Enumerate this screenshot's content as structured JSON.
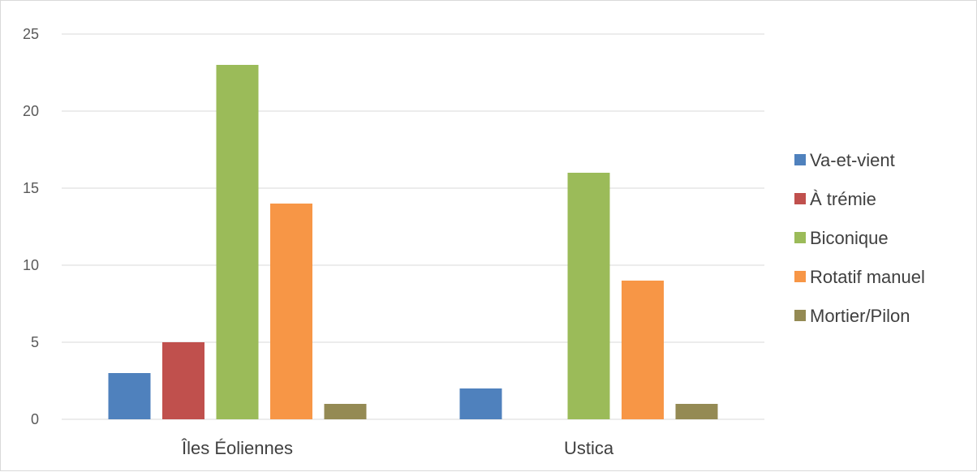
{
  "chart_data": {
    "type": "bar",
    "title": "",
    "xlabel": "",
    "ylabel": "",
    "categories": [
      "Îles Éoliennes",
      "Ustica"
    ],
    "series": [
      {
        "name": "Va-et-vient",
        "color": "#4f81bd",
        "values": [
          3,
          2
        ]
      },
      {
        "name": "À trémie",
        "color": "#c0504d",
        "values": [
          5,
          0
        ]
      },
      {
        "name": "Biconique",
        "color": "#9bbb59",
        "values": [
          23,
          16
        ]
      },
      {
        "name": "Rotatif manuel",
        "color": "#f79646",
        "values": [
          14,
          9
        ]
      },
      {
        "name": "Mortier/Pilon",
        "color": "#948a54",
        "values": [
          1,
          1
        ]
      }
    ],
    "ylim": [
      0,
      25
    ],
    "yticks": [
      0,
      5,
      10,
      15,
      20,
      25
    ],
    "grid": true,
    "legend_position": "right"
  }
}
